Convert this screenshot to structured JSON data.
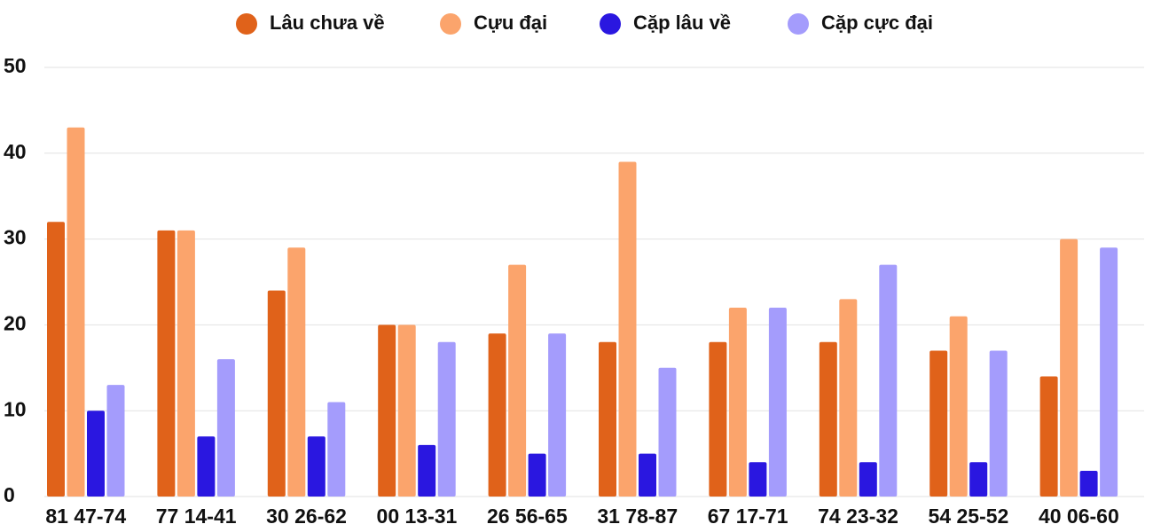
{
  "chart_data": {
    "type": "bar",
    "categories": [
      "81 47-74",
      "77 14-41",
      "30 26-62",
      "00 13-31",
      "26 56-65",
      "31 78-87",
      "67 17-71",
      "74 23-32",
      "54 25-52",
      "40 06-60"
    ],
    "series": [
      {
        "name": "Lâu chưa về",
        "color": "#e0621a",
        "values": [
          32,
          31,
          24,
          20,
          19,
          18,
          18,
          18,
          17,
          14
        ]
      },
      {
        "name": "Cựu đại",
        "color": "#fba46c",
        "values": [
          43,
          31,
          29,
          20,
          27,
          39,
          22,
          23,
          21,
          30
        ]
      },
      {
        "name": "Cặp lâu về",
        "color": "#2a17e0",
        "values": [
          10,
          7,
          7,
          6,
          5,
          5,
          4,
          4,
          4,
          3
        ]
      },
      {
        "name": "Cặp cực đại",
        "color": "#a49cfc",
        "values": [
          13,
          16,
          11,
          18,
          19,
          15,
          22,
          27,
          17,
          29
        ]
      }
    ],
    "ylim": [
      0,
      50
    ],
    "yticks": [
      0,
      10,
      20,
      30,
      40,
      50
    ],
    "grid": true,
    "legend": "top"
  }
}
